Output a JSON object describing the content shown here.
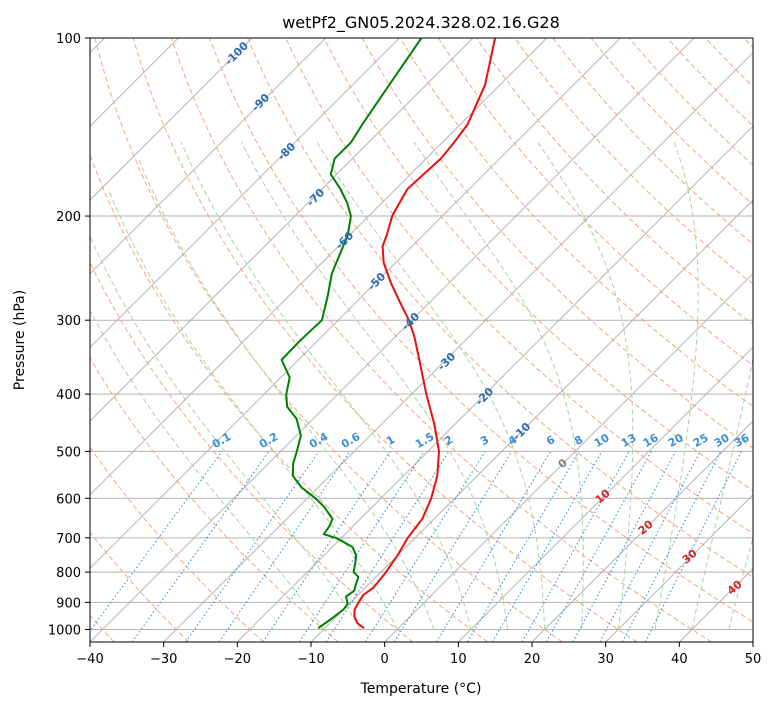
{
  "chart_data": {
    "type": "skew-t log-p",
    "title": "wetPf2_GN05.2024.328.02.16.G28",
    "xlabel": "Temperature (°C)",
    "ylabel": "Pressure (hPa)",
    "xlim": [
      -40,
      50
    ],
    "ylim": [
      1050,
      100
    ],
    "yscale": "log",
    "grid": true,
    "x_ticks": [
      "−40",
      "−30",
      "−20",
      "−10",
      "0",
      "10",
      "20",
      "30",
      "40",
      "50"
    ],
    "y_ticks": [
      "100",
      "200",
      "300",
      "400",
      "500",
      "600",
      "700",
      "800",
      "900",
      "1000"
    ],
    "series": [
      {
        "color": "#e81010",
        "points": [
          [
            995,
            -4.7
          ],
          [
            975,
            -6.3
          ],
          [
            950,
            -7.6
          ],
          [
            925,
            -8.5
          ],
          [
            900,
            -8.9
          ],
          [
            875,
            -9.3
          ],
          [
            850,
            -8.9
          ],
          [
            800,
            -9.3
          ],
          [
            750,
            -10.0
          ],
          [
            700,
            -11.0
          ],
          [
            650,
            -11.6
          ],
          [
            600,
            -13.2
          ],
          [
            550,
            -15.4
          ],
          [
            500,
            -18.5
          ],
          [
            450,
            -22.8
          ],
          [
            400,
            -28.0
          ],
          [
            350,
            -33.6
          ],
          [
            320,
            -37.4
          ],
          [
            300,
            -40.4
          ],
          [
            280,
            -44.0
          ],
          [
            260,
            -47.8
          ],
          [
            240,
            -51.6
          ],
          [
            225,
            -54.0
          ],
          [
            215,
            -55.0
          ],
          [
            200,
            -56.8
          ],
          [
            190,
            -57.6
          ],
          [
            180,
            -58.4
          ],
          [
            170,
            -58.2
          ],
          [
            160,
            -58.0
          ],
          [
            150,
            -58.4
          ],
          [
            140,
            -59.0
          ],
          [
            120,
            -62.0
          ],
          [
            100,
            -67.0
          ]
        ]
      },
      {
        "color": "#008000",
        "points": [
          [
            995,
            -10.9
          ],
          [
            960,
            -10.4
          ],
          [
            925,
            -10.0
          ],
          [
            905,
            -10.2
          ],
          [
            880,
            -11.4
          ],
          [
            860,
            -11.1
          ],
          [
            840,
            -11.7
          ],
          [
            815,
            -12.4
          ],
          [
            800,
            -13.7
          ],
          [
            775,
            -14.6
          ],
          [
            750,
            -15.6
          ],
          [
            725,
            -17.3
          ],
          [
            700,
            -20.8
          ],
          [
            690,
            -22.9
          ],
          [
            670,
            -23.2
          ],
          [
            650,
            -23.8
          ],
          [
            620,
            -26.6
          ],
          [
            600,
            -28.9
          ],
          [
            575,
            -32.3
          ],
          [
            550,
            -35.0
          ],
          [
            525,
            -36.6
          ],
          [
            500,
            -37.8
          ],
          [
            470,
            -39.4
          ],
          [
            440,
            -42.3
          ],
          [
            420,
            -45.2
          ],
          [
            400,
            -47.0
          ],
          [
            375,
            -48.8
          ],
          [
            350,
            -52.3
          ],
          [
            325,
            -52.4
          ],
          [
            300,
            -52.2
          ],
          [
            275,
            -54.5
          ],
          [
            250,
            -57.2
          ],
          [
            230,
            -58.9
          ],
          [
            215,
            -60.3
          ],
          [
            200,
            -62.4
          ],
          [
            190,
            -64.7
          ],
          [
            180,
            -67.5
          ],
          [
            170,
            -70.8
          ],
          [
            160,
            -72.4
          ],
          [
            150,
            -72.4
          ],
          [
            140,
            -73.3
          ],
          [
            120,
            -75.0
          ],
          [
            100,
            -77.0
          ]
        ]
      }
    ],
    "dry_adiabat_labels": [
      "-100",
      "-90",
      "-80",
      "-70",
      "-60",
      "-50",
      "-40",
      "-30",
      "-20",
      "-10"
    ],
    "mixing_ratio_labels": [
      "0.1",
      "0.2",
      "0.4",
      "0.6",
      "1",
      "1.5",
      "2",
      "3",
      "4",
      "6",
      "8",
      "10",
      "13",
      "16",
      "20",
      "25",
      "30",
      "36"
    ],
    "moist_adiabat_labels": [
      "0",
      "10",
      "20",
      "30",
      "40"
    ],
    "colors": {
      "isotherm": "#b3b3b3",
      "dry_adiabat": "#f4a582",
      "moist_adiabat": "#a6d4a0",
      "mixing_ratio": "#3b8fd6",
      "dry_label": "#2b6bb5",
      "moist_label": "#d62728",
      "freeze_label": "#808080"
    }
  }
}
